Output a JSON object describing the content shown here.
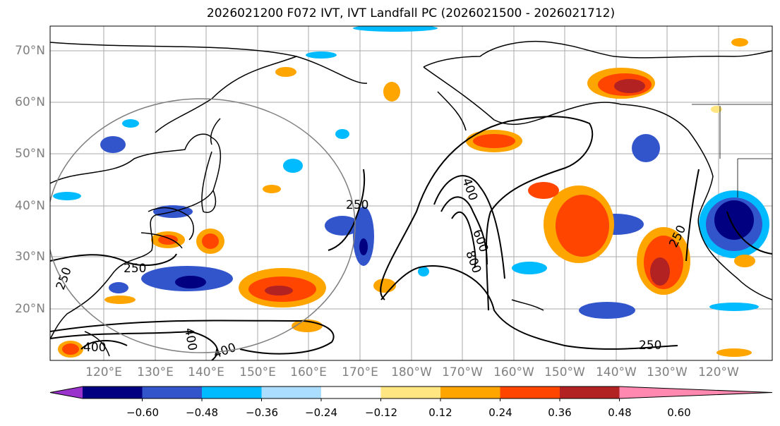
{
  "title": "2026021200 F072 IVT, IVT Landfall PC (2026021500 - 2026021712)",
  "map": {
    "lat_labels": [
      "70°N",
      "60°N",
      "50°N",
      "40°N",
      "30°N",
      "20°N"
    ],
    "lon_labels": [
      "120°E",
      "130°E",
      "140°E",
      "150°E",
      "160°E",
      "170°E",
      "180°W",
      "170°W",
      "160°W",
      "150°W",
      "140°W",
      "130°W",
      "120°W"
    ],
    "contour_labels": [
      "250",
      "250",
      "250",
      "250",
      "250",
      "400",
      "400",
      "400",
      "400",
      "600",
      "800"
    ]
  },
  "colorbar": {
    "colors": [
      "#9933cc",
      "#000080",
      "#3355cc",
      "#00bbff",
      "#aaddff",
      "#ffffff",
      "#ffe680",
      "#ffa500",
      "#ff4500",
      "#b22222",
      "#ff88b0"
    ],
    "tick_labels": [
      "−0.60",
      "−0.48",
      "−0.36",
      "−0.24",
      "−0.12",
      "0.12",
      "0.24",
      "0.36",
      "0.48",
      "0.60"
    ]
  }
}
